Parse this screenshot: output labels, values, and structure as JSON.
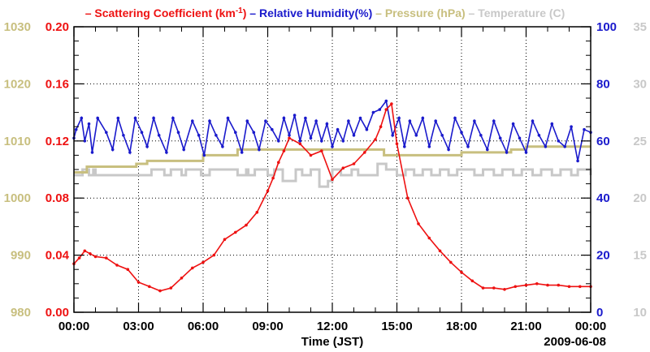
{
  "chart_data": {
    "type": "line",
    "title": "",
    "xlabel": "Time (JST)",
    "date_label": "2009-06-08",
    "x_ticks": [
      "00:00",
      "03:00",
      "06:00",
      "09:00",
      "12:00",
      "15:00",
      "18:00",
      "21:00",
      "00:00"
    ],
    "xlim_hours": [
      0,
      24
    ],
    "grid": true,
    "legend": {
      "placement": "top",
      "items": [
        {
          "dash": "–",
          "text": "Scattering Coefficient (km",
          "sup": "-1",
          "tail": ")",
          "color": "#ee1111"
        },
        {
          "dash": "–",
          "text": "Relative Humidity(%)",
          "sup": "",
          "tail": "",
          "color": "#1a1acc"
        },
        {
          "dash": "–",
          "text": "Pressure (hPa)",
          "sup": "",
          "tail": "",
          "color": "#c8bf7f"
        },
        {
          "dash": "–",
          "text": "Temperature (",
          "sup": "",
          "tail": "C)",
          "color": "#c8c8c8"
        }
      ]
    },
    "axes": {
      "pressure": {
        "side": "left-outer",
        "color": "#c8bf7f",
        "range": [
          980,
          1030
        ],
        "ticks": [
          "980",
          "990",
          "1000",
          "1010",
          "1020",
          "1030"
        ]
      },
      "scattering": {
        "side": "left-inner",
        "color": "#ee1111",
        "range": [
          0,
          0.2
        ],
        "ticks": [
          "0.00",
          "0.04",
          "0.08",
          "0.12",
          "0.16",
          "0.20"
        ]
      },
      "humidity": {
        "side": "right-inner",
        "color": "#1a1acc",
        "range": [
          0,
          100
        ],
        "ticks": [
          "0",
          "20",
          "40",
          "60",
          "80",
          "100"
        ]
      },
      "temperature": {
        "side": "right-outer",
        "color": "#c8c8c8",
        "range": [
          10,
          35
        ],
        "ticks": [
          "10",
          "15",
          "20",
          "25",
          "30",
          "35"
        ]
      }
    },
    "series": [
      {
        "name": "Scattering Coefficient (km-1)",
        "axis": "scattering",
        "color": "#ee1111",
        "marker": true,
        "x": [
          0.0,
          0.25,
          0.5,
          0.75,
          1.0,
          1.5,
          2.0,
          2.5,
          3.0,
          3.5,
          4.0,
          4.5,
          5.0,
          5.5,
          6.0,
          6.5,
          7.0,
          7.5,
          8.0,
          8.5,
          9.0,
          9.25,
          9.5,
          9.75,
          10.0,
          10.5,
          11.0,
          11.5,
          12.0,
          12.5,
          13.0,
          13.5,
          14.0,
          14.25,
          14.5,
          14.75,
          15.0,
          15.5,
          16.0,
          16.5,
          17.0,
          17.5,
          18.0,
          18.5,
          19.0,
          19.5,
          20.0,
          20.5,
          21.0,
          21.5,
          22.0,
          22.5,
          23.0,
          23.5,
          24.0
        ],
        "values": [
          0.034,
          0.038,
          0.043,
          0.041,
          0.039,
          0.038,
          0.033,
          0.03,
          0.021,
          0.018,
          0.015,
          0.017,
          0.024,
          0.031,
          0.035,
          0.04,
          0.051,
          0.056,
          0.061,
          0.07,
          0.085,
          0.094,
          0.105,
          0.113,
          0.122,
          0.118,
          0.11,
          0.113,
          0.093,
          0.101,
          0.104,
          0.112,
          0.121,
          0.13,
          0.142,
          0.146,
          0.118,
          0.08,
          0.062,
          0.052,
          0.043,
          0.035,
          0.028,
          0.022,
          0.017,
          0.017,
          0.016,
          0.018,
          0.019,
          0.02,
          0.019,
          0.019,
          0.018,
          0.018,
          0.018
        ]
      },
      {
        "name": "Relative Humidity(%)",
        "axis": "humidity",
        "color": "#1a1acc",
        "marker": true,
        "x": [
          0.0,
          0.1,
          0.35,
          0.5,
          0.7,
          0.85,
          1.1,
          1.5,
          1.8,
          2.05,
          2.3,
          2.6,
          2.85,
          3.15,
          3.4,
          3.7,
          3.95,
          4.3,
          4.6,
          4.85,
          5.1,
          5.5,
          5.8,
          6.05,
          6.3,
          6.6,
          6.9,
          7.15,
          7.5,
          7.8,
          8.05,
          8.35,
          8.6,
          8.9,
          9.2,
          9.5,
          9.75,
          10.0,
          10.25,
          10.5,
          10.75,
          11.0,
          11.25,
          11.5,
          11.75,
          12.0,
          12.25,
          12.5,
          12.75,
          13.0,
          13.3,
          13.6,
          13.9,
          14.2,
          14.5,
          14.8,
          15.1,
          15.35,
          15.6,
          15.9,
          16.2,
          16.5,
          16.8,
          17.1,
          17.4,
          17.7,
          18.0,
          18.3,
          18.6,
          18.9,
          19.2,
          19.5,
          19.8,
          20.1,
          20.4,
          20.7,
          21.0,
          21.3,
          21.6,
          21.9,
          22.2,
          22.5,
          22.8,
          23.1,
          23.4,
          23.7,
          24.0
        ],
        "values": [
          61,
          64,
          68,
          60,
          66,
          56,
          68,
          63,
          57,
          68,
          62,
          56,
          68,
          63,
          58,
          68,
          62,
          56,
          68,
          63,
          57,
          67,
          62,
          55,
          67,
          62,
          58,
          68,
          63,
          56,
          67,
          63,
          57,
          67,
          64,
          60,
          68,
          62,
          69,
          60,
          68,
          61,
          67,
          60,
          66,
          58,
          64,
          60,
          67,
          62,
          68,
          64,
          70,
          71,
          74,
          62,
          68,
          58,
          67,
          62,
          68,
          58,
          67,
          62,
          57,
          68,
          63,
          58,
          67,
          62,
          57,
          67,
          61,
          56,
          66,
          61,
          56,
          67,
          62,
          58,
          66,
          60,
          58,
          65,
          53,
          64,
          63
        ]
      },
      {
        "name": "Pressure (hPa)",
        "axis": "pressure",
        "color": "#c8bf7f",
        "marker": false,
        "step": true,
        "x": [
          0.0,
          0.6,
          1.8,
          2.9,
          3.4,
          6.0,
          7.6,
          9.6,
          10.2,
          13.9,
          14.4,
          18.0,
          20.3,
          21.0,
          24.0
        ],
        "values": [
          1004.5,
          1005.5,
          1005.5,
          1006.0,
          1006.5,
          1007.5,
          1008.5,
          1008.5,
          1008.5,
          1008.5,
          1007.5,
          1008.0,
          1008.5,
          1009.0,
          1009.0
        ]
      },
      {
        "name": "Temperature (C)",
        "axis": "temperature",
        "color": "#c8c8c8",
        "marker": false,
        "step": true,
        "x": [
          0.0,
          0.4,
          0.7,
          0.9,
          1.0,
          3.3,
          3.6,
          4.2,
          4.5,
          5.0,
          5.2,
          5.9,
          6.3,
          7.6,
          8.0,
          8.1,
          8.4,
          9.0,
          9.3,
          9.7,
          10.3,
          10.6,
          11.0,
          11.4,
          11.8,
          12.0,
          12.4,
          12.9,
          13.2,
          14.1,
          14.5,
          15.0,
          15.4,
          15.8,
          16.2,
          16.6,
          17.0,
          17.4,
          17.8,
          18.6,
          19.0,
          19.5,
          19.9,
          20.4,
          20.8,
          21.3,
          21.7,
          22.2,
          22.6,
          23.1,
          23.4,
          24.0
        ],
        "values": [
          22.0,
          22.5,
          22.0,
          22.5,
          22.0,
          22.0,
          22.5,
          22.0,
          22.5,
          22.0,
          22.5,
          22.0,
          22.5,
          22.0,
          22.5,
          22.0,
          22.5,
          22.0,
          22.5,
          21.5,
          22.5,
          22.0,
          22.5,
          21.0,
          21.5,
          22.5,
          22.0,
          22.5,
          22.0,
          23.0,
          22.5,
          22.0,
          22.5,
          22.0,
          22.5,
          22.0,
          22.5,
          22.0,
          22.5,
          22.0,
          22.5,
          22.0,
          22.5,
          22.0,
          22.5,
          22.0,
          22.5,
          22.0,
          22.5,
          22.0,
          22.5,
          22.0
        ]
      }
    ]
  }
}
